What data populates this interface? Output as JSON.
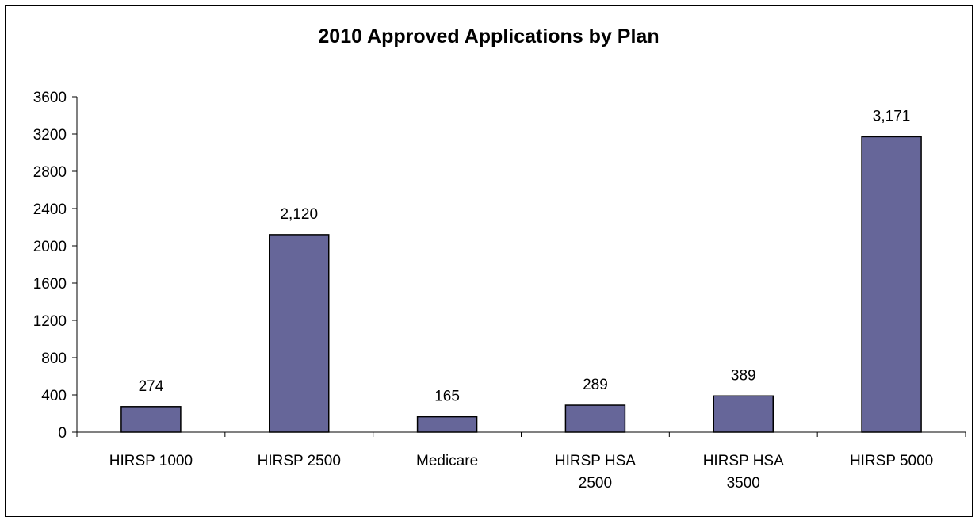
{
  "chart_data": {
    "type": "bar",
    "title": "2010 Approved Applications by Plan",
    "xlabel": "",
    "ylabel": "",
    "categories": [
      [
        "HIRSP 1000"
      ],
      [
        "HIRSP 2500"
      ],
      [
        "Medicare"
      ],
      [
        "HIRSP HSA",
        "2500"
      ],
      [
        "HIRSP HSA",
        "3500"
      ],
      [
        "HIRSP 5000"
      ]
    ],
    "values": [
      274,
      2120,
      165,
      289,
      389,
      3171
    ],
    "data_labels": [
      "274",
      "2,120",
      "165",
      "289",
      "389",
      "3,171"
    ],
    "ylim": [
      0,
      3600
    ],
    "yticks": [
      0,
      400,
      800,
      1200,
      1600,
      2000,
      2400,
      2800,
      3200,
      3600
    ],
    "grid": false,
    "legend": "none",
    "colors": {
      "bar_fill": "#666699",
      "bar_stroke": "#000000",
      "axis": "#000000"
    }
  }
}
